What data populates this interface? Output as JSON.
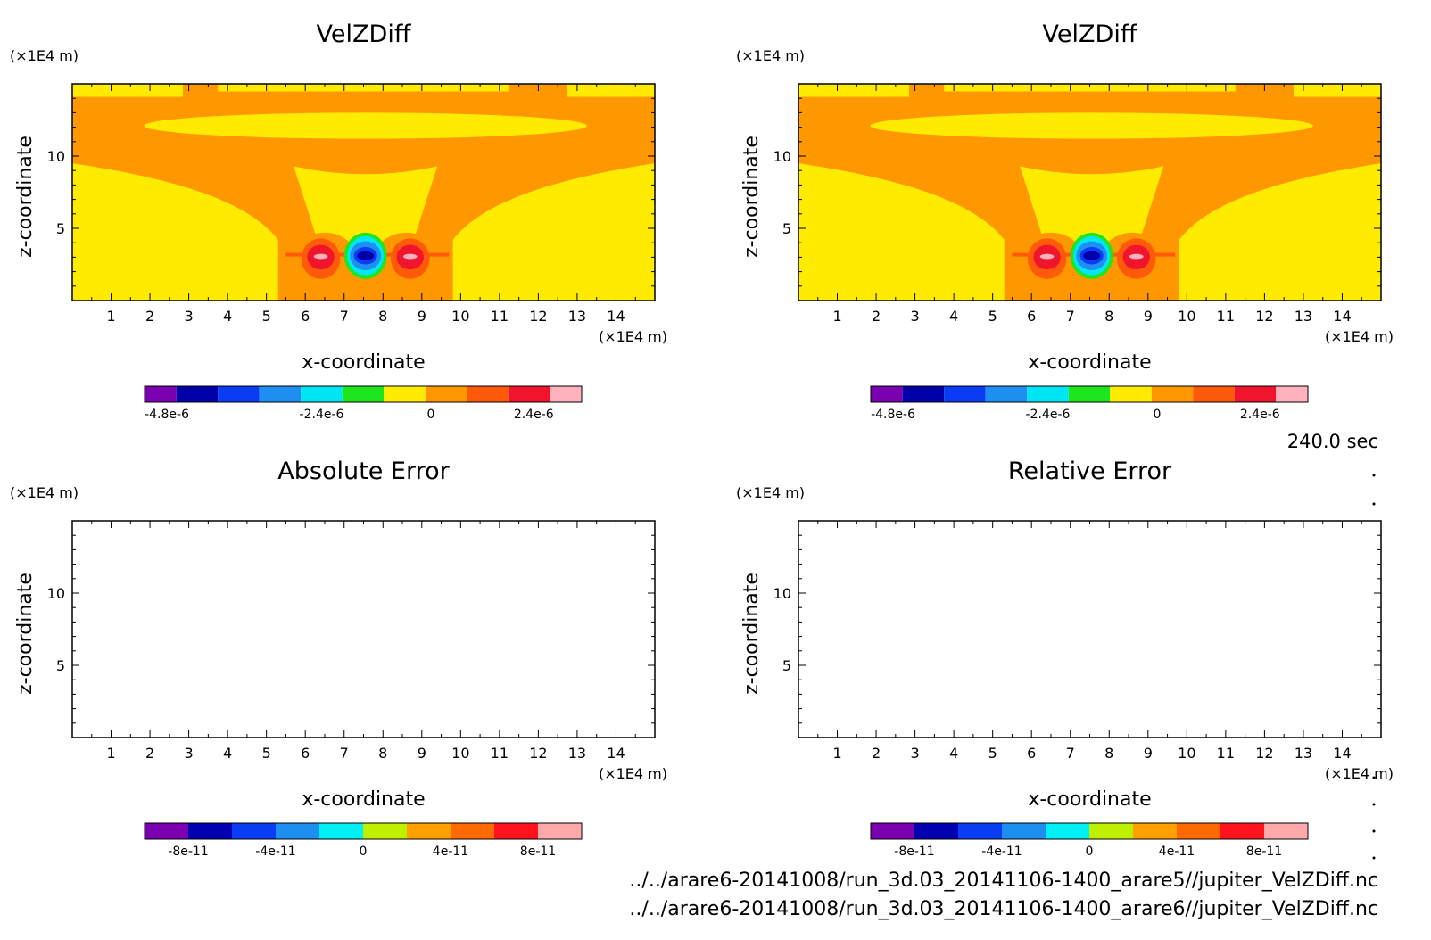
{
  "time_label": "240.0 sec",
  "files": [
    "../../arare6-20141008/run_3d.03_20141106-1400_arare5//jupiter_VelZDiff.nc",
    "../../arare6-20141008/run_3d.03_20141106-1400_arare6//jupiter_VelZDiff.nc"
  ],
  "colors": {
    "velz": [
      "#7a00b0",
      "#0000a8",
      "#0b3cf5",
      "#1e8ff0",
      "#00e6f5",
      "#1ee61e",
      "#ffeb00",
      "#ff9800",
      "#ff5a0a",
      "#f0142d",
      "#ffb2bd"
    ],
    "err": [
      "#7a00b0",
      "#0000b0",
      "#0b3cf5",
      "#1e8ff0",
      "#00f0f5",
      "#bef000",
      "#ffa000",
      "#ff6a00",
      "#ff141e",
      "#ffaaaa"
    ]
  },
  "chart_data": [
    {
      "type": "heatmap",
      "title": "VelZDiff",
      "xlabel": "x-coordinate",
      "ylabel": "z-coordinate",
      "x_unit": "(×1E4 m)",
      "y_unit": "(×1E4 m)",
      "xlim": [
        0,
        15
      ],
      "ylim": [
        0,
        15
      ],
      "x_ticks": [
        "1",
        "2",
        "3",
        "4",
        "5",
        "6",
        "7",
        "8",
        "9",
        "10",
        "11",
        "12",
        "13",
        "14"
      ],
      "y_ticks": [
        "5",
        "10"
      ],
      "colorbar_labels": [
        "-4.8e-6",
        "-2.4e-6",
        "0",
        "2.4e-6"
      ],
      "field": "velz"
    },
    {
      "type": "heatmap",
      "title": "VelZDiff",
      "xlabel": "x-coordinate",
      "ylabel": "z-coordinate",
      "x_unit": "(×1E4 m)",
      "y_unit": "(×1E4 m)",
      "xlim": [
        0,
        15
      ],
      "ylim": [
        0,
        15
      ],
      "x_ticks": [
        "1",
        "2",
        "3",
        "4",
        "5",
        "6",
        "7",
        "8",
        "9",
        "10",
        "11",
        "12",
        "13",
        "14"
      ],
      "y_ticks": [
        "5",
        "10"
      ],
      "colorbar_labels": [
        "-4.8e-6",
        "-2.4e-6",
        "0",
        "2.4e-6"
      ],
      "field": "velz"
    },
    {
      "type": "heatmap",
      "title": "Absolute Error",
      "xlabel": "x-coordinate",
      "ylabel": "z-coordinate",
      "x_unit": "(×1E4 m)",
      "y_unit": "(×1E4 m)",
      "xlim": [
        0,
        15
      ],
      "ylim": [
        0,
        15
      ],
      "x_ticks": [
        "1",
        "2",
        "3",
        "4",
        "5",
        "6",
        "7",
        "8",
        "9",
        "10",
        "11",
        "12",
        "13",
        "14"
      ],
      "y_ticks": [
        "5",
        "10"
      ],
      "colorbar_labels": [
        "-8e-11",
        "-4e-11",
        "0",
        "4e-11",
        "8e-11"
      ],
      "field": "empty"
    },
    {
      "type": "heatmap",
      "title": "Relative Error",
      "xlabel": "x-coordinate",
      "ylabel": "z-coordinate",
      "x_unit": "(×1E4 m)",
      "y_unit": "(×1E4 m)",
      "xlim": [
        0,
        15
      ],
      "ylim": [
        0,
        15
      ],
      "x_ticks": [
        "1",
        "2",
        "3",
        "4",
        "5",
        "6",
        "7",
        "8",
        "9",
        "10",
        "11",
        "12",
        "13",
        "14"
      ],
      "y_ticks": [
        "5",
        "10"
      ],
      "colorbar_labels": [
        "-8e-11",
        "-4e-11",
        "0",
        "4e-11",
        "8e-11"
      ],
      "field": "empty"
    }
  ]
}
